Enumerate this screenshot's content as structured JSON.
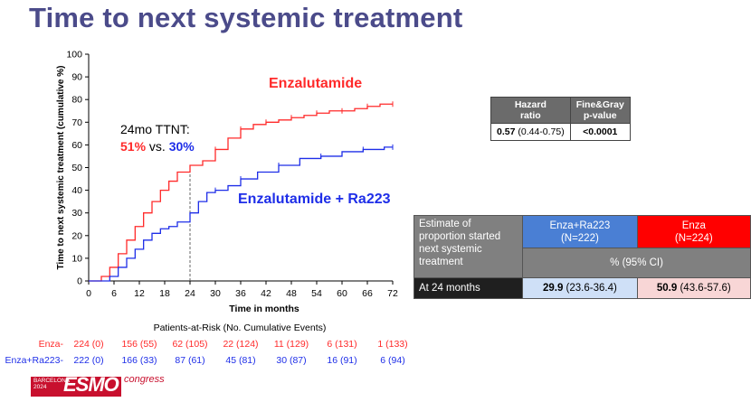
{
  "title": "Time to next systemic treatment",
  "chart_data": {
    "type": "line",
    "ylabel": "Time to next systemic treatment (cumulative %)",
    "xlabel": "Time in months",
    "xlim": [
      0,
      72
    ],
    "ylim": [
      0,
      100
    ],
    "xticks": [
      0,
      6,
      12,
      18,
      24,
      30,
      36,
      42,
      48,
      54,
      60,
      66,
      72
    ],
    "yticks": [
      0,
      10,
      20,
      30,
      40,
      50,
      60,
      70,
      80,
      90,
      100
    ],
    "series": [
      {
        "name": "Enzalutamide",
        "color": "#ff2a2a",
        "points": [
          [
            0,
            0
          ],
          [
            2,
            0
          ],
          [
            3,
            2
          ],
          [
            5,
            6
          ],
          [
            7,
            12
          ],
          [
            9,
            18
          ],
          [
            11,
            24
          ],
          [
            13,
            30
          ],
          [
            15,
            35
          ],
          [
            17,
            40
          ],
          [
            19,
            44
          ],
          [
            21,
            48
          ],
          [
            24,
            51
          ],
          [
            27,
            53
          ],
          [
            30,
            58
          ],
          [
            33,
            63
          ],
          [
            36,
            67
          ],
          [
            39,
            69
          ],
          [
            42,
            70
          ],
          [
            45,
            71
          ],
          [
            48,
            72
          ],
          [
            51,
            73
          ],
          [
            54,
            74
          ],
          [
            57,
            75
          ],
          [
            60,
            75
          ],
          [
            63,
            76
          ],
          [
            66,
            77
          ],
          [
            69,
            78
          ],
          [
            72,
            78
          ]
        ]
      },
      {
        "name": "Enzalutamide + Ra223",
        "color": "#1e2ee8",
        "points": [
          [
            0,
            0
          ],
          [
            4,
            0
          ],
          [
            5,
            2
          ],
          [
            7,
            6
          ],
          [
            9,
            10
          ],
          [
            11,
            14
          ],
          [
            13,
            18
          ],
          [
            15,
            21
          ],
          [
            17,
            23
          ],
          [
            19,
            24
          ],
          [
            21,
            26
          ],
          [
            24,
            30
          ],
          [
            26,
            35
          ],
          [
            28,
            39
          ],
          [
            30,
            40
          ],
          [
            33,
            42
          ],
          [
            36,
            45
          ],
          [
            40,
            48
          ],
          [
            45,
            51
          ],
          [
            50,
            54
          ],
          [
            55,
            55
          ],
          [
            60,
            57
          ],
          [
            65,
            58
          ],
          [
            70,
            59
          ],
          [
            72,
            59
          ]
        ]
      }
    ],
    "series_labels": [
      "Enzalutamide",
      "Enzalutamide + Ra223"
    ],
    "annotation": {
      "line1": "24mo TTNT:",
      "red": "51%",
      "vs": " vs. ",
      "blue": "30%"
    },
    "reference_x": 24
  },
  "risk_table": {
    "heading": "Patients-at-Risk (No. Cumulative Events)",
    "rows": [
      {
        "label": "Enza-",
        "color": "#ff2a2a",
        "values": [
          "224 (0)",
          "156 (55)",
          "62 (105)",
          "22 (124)",
          "11 (129)",
          "6 (131)",
          "1 (133)"
        ]
      },
      {
        "label": "Enza+Ra223-",
        "color": "#1e2ee8",
        "values": [
          "222 (0)",
          "166 (33)",
          "87 (61)",
          "45 (81)",
          "30 (87)",
          "16 (91)",
          "6 (94)"
        ]
      }
    ]
  },
  "hazard_table": {
    "col1_line1": "Hazard",
    "col1_line2": "ratio",
    "col2_line1": "Fine&Gray",
    "col2_line2": "p-value",
    "hr_value": "0.57",
    "hr_ci": " (0.44-0.75)",
    "p_value": "<0.0001"
  },
  "estimate_table": {
    "label_lines": [
      "Estimate of",
      "proportion started",
      "next systemic",
      "treatment"
    ],
    "col_blue_line1": "Enza+Ra223",
    "col_blue_line2": "(N=222)",
    "col_red_line1": "Enza",
    "col_red_line2": "(N=224)",
    "ci_header": "% (95% CI)",
    "row_label": "At 24 months",
    "blue_value": "29.9",
    "blue_ci": " (23.6-36.4)",
    "red_value": "50.9",
    "red_ci": " (43.6-57.6)"
  },
  "logo": {
    "city": "BARCELONA",
    "year": "2024",
    "brand": "ESMO",
    "suffix": "congress"
  }
}
